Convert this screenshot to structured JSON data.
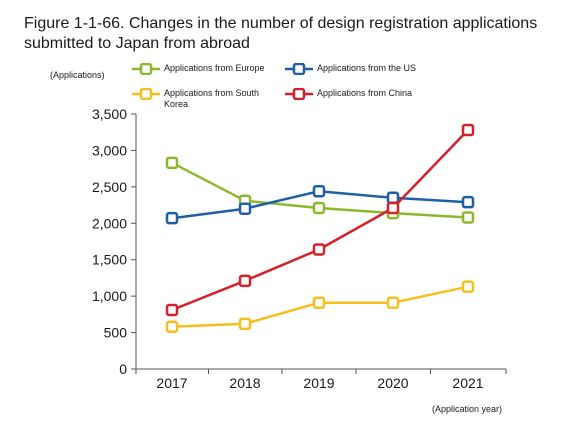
{
  "chart_data": {
    "type": "line",
    "title": "Figure 1-1-66. Changes in the number of design registration applications submitted to Japan from abroad",
    "ylabel": "(Applications)",
    "xlabel": "(Application year)",
    "ylim": [
      0,
      3500
    ],
    "yticks": [
      0,
      500,
      1000,
      1500,
      2000,
      2500,
      3000,
      3500
    ],
    "yticklabels": [
      "0",
      "500",
      "1,000",
      "1,500",
      "2,000",
      "2,500",
      "3,000",
      "3,500"
    ],
    "categories": [
      "2017",
      "2018",
      "2019",
      "2020",
      "2021"
    ],
    "grid": false,
    "legend_position": "top",
    "series": [
      {
        "name": "Applications from Europe",
        "color": "#8db72e",
        "values": [
          2830,
          2310,
          2210,
          2140,
          2080
        ]
      },
      {
        "name": "Applications from the US",
        "color": "#1f5fa6",
        "values": [
          2070,
          2200,
          2440,
          2350,
          2290
        ]
      },
      {
        "name": "Applications from South Korea",
        "color": "#f5bf1f",
        "values": [
          580,
          620,
          910,
          910,
          1130
        ]
      },
      {
        "name": "Applications from China",
        "color": "#d3202a",
        "values": [
          810,
          1210,
          1640,
          2210,
          3280
        ]
      }
    ]
  }
}
